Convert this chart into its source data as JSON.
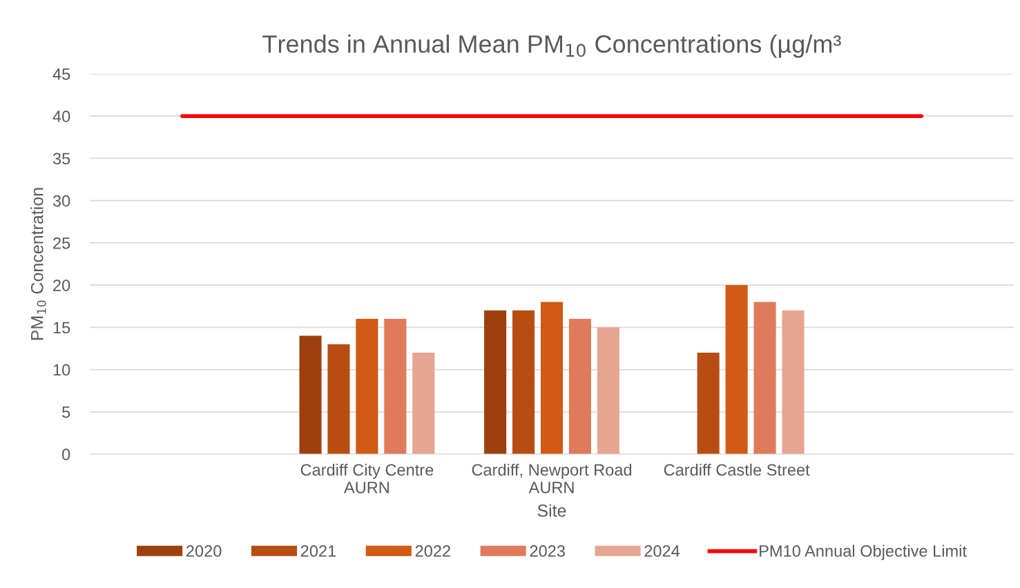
{
  "chart_data": {
    "type": "bar",
    "title": "Trends in Annual Mean PM$_{10}$ Concentrations (µg/m³",
    "xlabel": "Site",
    "ylabel": "PM$_{10}$ Concentration",
    "categories": [
      null,
      "Cardiff City Centre\nAURN",
      "Cardiff, Newport Road\nAURN",
      "Cardiff Castle Street",
      null
    ],
    "series": [
      {
        "name": "2020",
        "color": "#9c410e",
        "values": [
          null,
          14,
          17,
          null,
          null
        ]
      },
      {
        "name": "2021",
        "color": "#b84d14",
        "values": [
          null,
          13,
          17,
          12,
          null
        ]
      },
      {
        "name": "2022",
        "color": "#d05a16",
        "values": [
          null,
          16,
          18,
          20,
          null
        ]
      },
      {
        "name": "2023",
        "color": "#df7b5c",
        "values": [
          null,
          16,
          16,
          18,
          null
        ]
      },
      {
        "name": "2024",
        "color": "#e6a592",
        "values": [
          null,
          12,
          15,
          17,
          null
        ]
      },
      {
        "name": "PM10 Annual Objective Limit",
        "type": "line",
        "color": "#ff0000",
        "values": [
          40,
          40,
          40,
          40,
          40
        ]
      }
    ],
    "ylim": [
      0,
      45
    ],
    "yticks": [
      0,
      5,
      10,
      15,
      20,
      25,
      30,
      35,
      40,
      45
    ],
    "grid": "y",
    "legend": "bottom"
  }
}
